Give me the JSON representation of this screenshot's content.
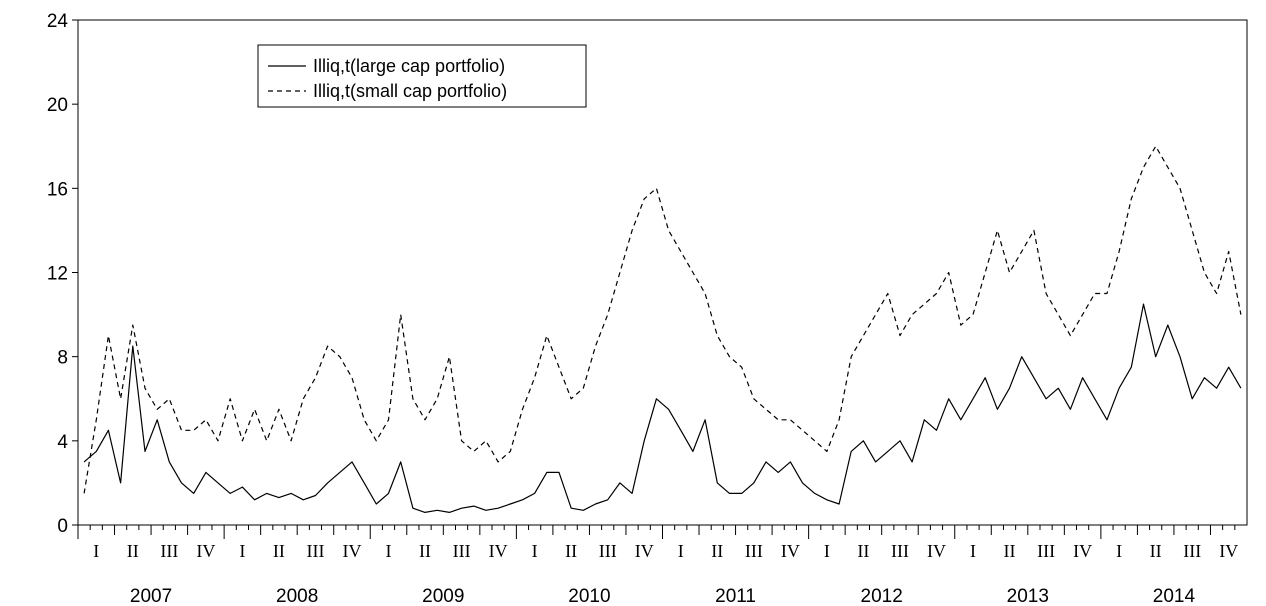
{
  "chart_data": {
    "type": "line",
    "title": "",
    "xlabel": "",
    "ylabel": "",
    "ylim": [
      0,
      24
    ],
    "yticks": [
      0,
      4,
      8,
      12,
      16,
      20,
      24
    ],
    "xlim": [
      "2007-01",
      "2014-12"
    ],
    "grid": false,
    "legend_position": "top-left",
    "x_axis": {
      "years": [
        "2007",
        "2008",
        "2009",
        "2010",
        "2011",
        "2012",
        "2013",
        "2014"
      ],
      "quarters": [
        "I",
        "II",
        "III",
        "IV"
      ]
    },
    "x": [
      "2007-01",
      "2007-02",
      "2007-03",
      "2007-04",
      "2007-05",
      "2007-06",
      "2007-07",
      "2007-08",
      "2007-09",
      "2007-10",
      "2007-11",
      "2007-12",
      "2008-01",
      "2008-02",
      "2008-03",
      "2008-04",
      "2008-05",
      "2008-06",
      "2008-07",
      "2008-08",
      "2008-09",
      "2008-10",
      "2008-11",
      "2008-12",
      "2009-01",
      "2009-02",
      "2009-03",
      "2009-04",
      "2009-05",
      "2009-06",
      "2009-07",
      "2009-08",
      "2009-09",
      "2009-10",
      "2009-11",
      "2009-12",
      "2010-01",
      "2010-02",
      "2010-03",
      "2010-04",
      "2010-05",
      "2010-06",
      "2010-07",
      "2010-08",
      "2010-09",
      "2010-10",
      "2010-11",
      "2010-12",
      "2011-01",
      "2011-02",
      "2011-03",
      "2011-04",
      "2011-05",
      "2011-06",
      "2011-07",
      "2011-08",
      "2011-09",
      "2011-10",
      "2011-11",
      "2011-12",
      "2012-01",
      "2012-02",
      "2012-03",
      "2012-04",
      "2012-05",
      "2012-06",
      "2012-07",
      "2012-08",
      "2012-09",
      "2012-10",
      "2012-11",
      "2012-12",
      "2013-01",
      "2013-02",
      "2013-03",
      "2013-04",
      "2013-05",
      "2013-06",
      "2013-07",
      "2013-08",
      "2013-09",
      "2013-10",
      "2013-11",
      "2013-12",
      "2014-01",
      "2014-02",
      "2014-03",
      "2014-04",
      "2014-05",
      "2014-06",
      "2014-07",
      "2014-08",
      "2014-09",
      "2014-10",
      "2014-11",
      "2014-12"
    ],
    "series": [
      {
        "name": "Illiq,t(large cap portfolio)",
        "style": "solid",
        "color": "#000000",
        "values": [
          3.0,
          3.5,
          4.5,
          2.0,
          8.5,
          3.5,
          5.0,
          3.0,
          2.0,
          1.5,
          2.5,
          2.0,
          1.5,
          1.8,
          1.2,
          1.5,
          1.3,
          1.5,
          1.2,
          1.4,
          2.0,
          2.5,
          3.0,
          2.0,
          1.0,
          1.5,
          3.0,
          0.8,
          0.6,
          0.7,
          0.6,
          0.8,
          0.9,
          0.7,
          0.8,
          1.0,
          1.2,
          1.5,
          2.5,
          2.5,
          0.8,
          0.7,
          1.0,
          1.2,
          2.0,
          1.5,
          4.0,
          6.0,
          5.5,
          4.5,
          3.5,
          5.0,
          2.0,
          1.5,
          1.5,
          2.0,
          3.0,
          2.5,
          3.0,
          2.0,
          1.5,
          1.2,
          1.0,
          3.5,
          4.0,
          3.0,
          3.5,
          4.0,
          3.0,
          5.0,
          4.5,
          6.0,
          5.0,
          6.0,
          7.0,
          5.5,
          6.5,
          8.0,
          7.0,
          6.0,
          6.5,
          5.5,
          7.0,
          6.0,
          5.0,
          6.5,
          7.5,
          10.5,
          8.0,
          9.5,
          8.0,
          6.0,
          7.0,
          6.5,
          7.5,
          6.5
        ]
      },
      {
        "name": "Illiq,t(small cap portfolio)",
        "style": "dashed",
        "color": "#000000",
        "values": [
          1.5,
          5.0,
          9.0,
          6.0,
          9.5,
          6.5,
          5.5,
          6.0,
          4.5,
          4.5,
          5.0,
          4.0,
          6.0,
          4.0,
          5.5,
          4.0,
          5.5,
          4.0,
          6.0,
          7.0,
          8.5,
          8.0,
          7.0,
          5.0,
          4.0,
          5.0,
          10.0,
          6.0,
          5.0,
          6.0,
          8.0,
          4.0,
          3.5,
          4.0,
          3.0,
          3.5,
          5.5,
          7.0,
          9.0,
          7.5,
          6.0,
          6.5,
          8.5,
          10.0,
          12.0,
          14.0,
          15.5,
          16.0,
          14.0,
          13.0,
          12.0,
          11.0,
          9.0,
          8.0,
          7.5,
          6.0,
          5.5,
          5.0,
          5.0,
          4.5,
          4.0,
          3.5,
          5.0,
          8.0,
          9.0,
          10.0,
          11.0,
          9.0,
          10.0,
          10.5,
          11.0,
          12.0,
          9.5,
          10.0,
          12.0,
          14.0,
          12.0,
          13.0,
          14.0,
          11.0,
          10.0,
          9.0,
          10.0,
          11.0,
          11.0,
          13.0,
          15.5,
          17.0,
          18.0,
          17.0,
          16.0,
          14.0,
          12.0,
          11.0,
          13.0,
          10.0
        ]
      }
    ]
  }
}
